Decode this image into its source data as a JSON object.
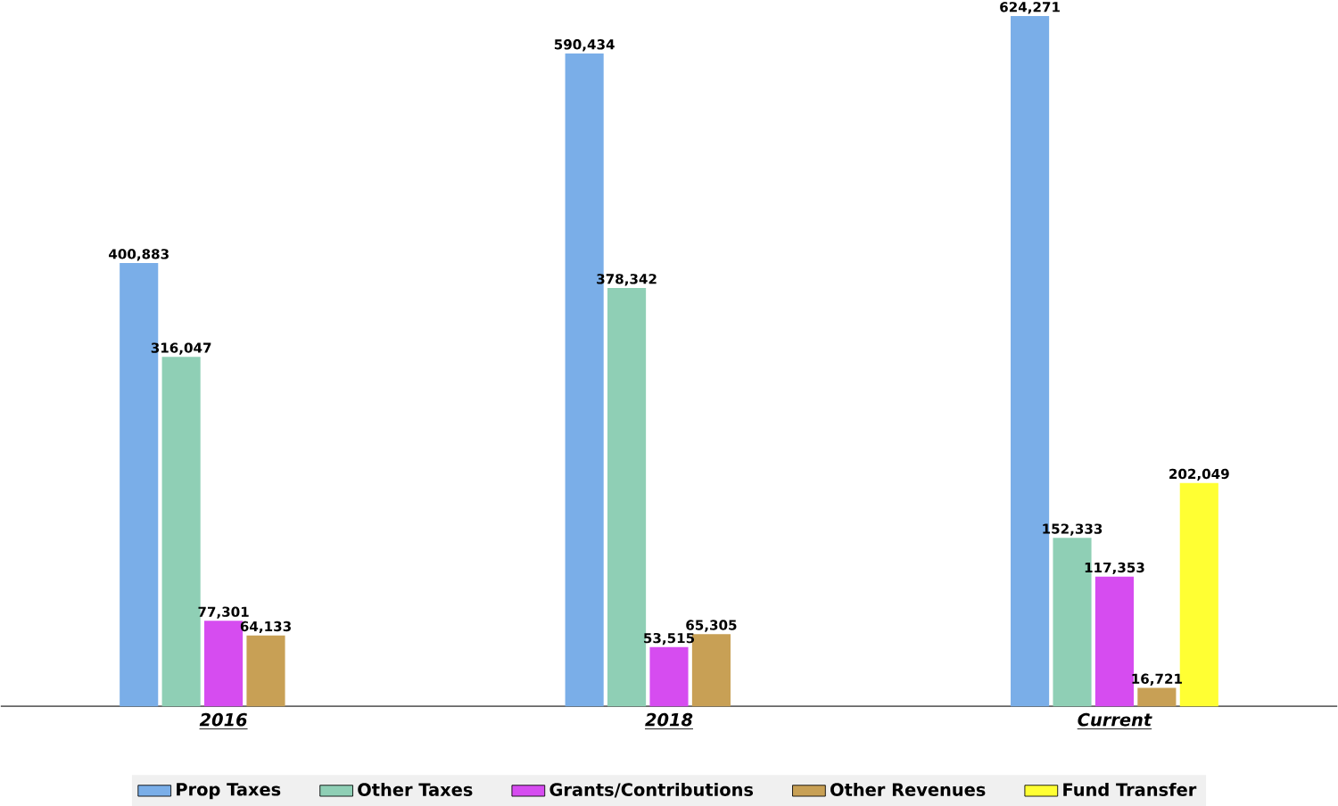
{
  "chart_data": {
    "type": "bar",
    "categories": [
      "2016",
      "2018",
      "Current"
    ],
    "series": [
      {
        "name": "Prop Taxes",
        "color": "#7aaee8",
        "values": [
          400883,
          590434,
          624271
        ],
        "value_labels": [
          "400,883",
          "590,434",
          "624,271"
        ]
      },
      {
        "name": "Other Taxes",
        "color": "#8fcfb5",
        "values": [
          316047,
          378342,
          152333
        ],
        "value_labels": [
          "316,047",
          "378,342",
          "152,333"
        ]
      },
      {
        "name": "Grants/Contributions",
        "color": "#d64cf0",
        "values": [
          77301,
          53515,
          117353
        ],
        "value_labels": [
          "77,301",
          "53,515",
          "117,353"
        ]
      },
      {
        "name": "Other Revenues",
        "color": "#c8a055",
        "values": [
          64133,
          65305,
          16721
        ],
        "value_labels": [
          "64,133",
          "65,305",
          "16,721"
        ]
      },
      {
        "name": "Fund Transfer",
        "color": "#ffff33",
        "values": [
          null,
          null,
          202049
        ],
        "value_labels": [
          null,
          null,
          "202,049"
        ]
      }
    ],
    "tick_labels": "x",
    "legend": "bottom"
  }
}
